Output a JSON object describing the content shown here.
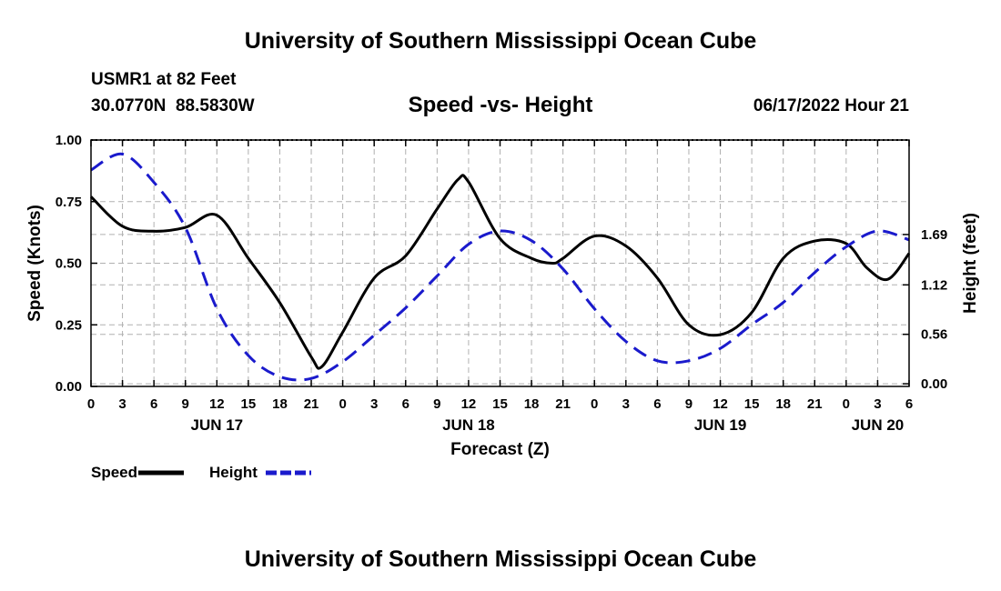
{
  "header": {
    "title": "University of Southern Mississippi Ocean Cube",
    "station": "USMR1 at 82 Feet",
    "coords": "30.0770N  88.5830W",
    "date": "06/17/2022 Hour 21",
    "footer_title": "University of Southern Mississippi Ocean Cube"
  },
  "colors": {
    "speed": "#000000",
    "height": "#1a1acc",
    "grid": "#b0b0b0"
  },
  "chart_data": {
    "type": "line",
    "title": "Speed -vs- Height",
    "xlabel": "Forecast (Z)",
    "ylabel": "Speed (Knots)",
    "y2label": "Height (feet)",
    "xlim": [
      0,
      78
    ],
    "ylim": [
      0,
      1
    ],
    "y2lim": [
      -0.03,
      2.76
    ],
    "x_tick_labels": [
      "0",
      "3",
      "6",
      "9",
      "12",
      "15",
      "18",
      "21",
      "0",
      "3",
      "6",
      "9",
      "12",
      "15",
      "18",
      "21",
      "0",
      "3",
      "6",
      "9",
      "12",
      "15",
      "18",
      "21",
      "0",
      "3",
      "6"
    ],
    "day_labels": [
      {
        "x": 12,
        "label": "JUN 17"
      },
      {
        "x": 36,
        "label": "JUN 18"
      },
      {
        "x": 60,
        "label": "JUN 19"
      },
      {
        "x": 75,
        "label": "JUN 20"
      }
    ],
    "y_ticks": [
      0,
      0.25,
      0.5,
      0.75,
      1.0
    ],
    "y_tick_labels": [
      "0.00",
      "0.25",
      "0.50",
      "0.75",
      "1.00"
    ],
    "y2_ticks": [
      0,
      0.56,
      1.12,
      1.69
    ],
    "y2_tick_labels": [
      "0.00",
      "0.56",
      "1.12",
      "1.69"
    ],
    "series": [
      {
        "name": "Speed",
        "axis": "left",
        "style": "solid",
        "x": [
          0,
          3,
          6,
          9,
          12,
          15,
          18,
          21,
          22,
          24,
          27,
          30,
          33,
          35,
          36,
          39,
          42,
          44,
          45,
          48,
          51,
          54,
          57,
          60,
          63,
          66,
          69,
          72,
          74,
          76,
          78
        ],
        "y": [
          0.77,
          0.65,
          0.63,
          0.645,
          0.695,
          0.52,
          0.34,
          0.12,
          0.08,
          0.22,
          0.44,
          0.53,
          0.72,
          0.84,
          0.83,
          0.6,
          0.52,
          0.5,
          0.52,
          0.61,
          0.57,
          0.44,
          0.25,
          0.21,
          0.3,
          0.52,
          0.59,
          0.58,
          0.48,
          0.435,
          0.54
        ]
      },
      {
        "name": "Height",
        "axis": "right",
        "style": "dashed",
        "x": [
          0,
          3,
          6,
          9,
          12,
          15,
          18,
          21,
          24,
          27,
          30,
          33,
          36,
          39,
          42,
          45,
          48,
          51,
          54,
          57,
          60,
          63,
          66,
          69,
          72,
          75,
          78
        ],
        "y": [
          2.42,
          2.6,
          2.28,
          1.77,
          0.85,
          0.32,
          0.08,
          0.06,
          0.25,
          0.55,
          0.86,
          1.22,
          1.58,
          1.73,
          1.62,
          1.3,
          0.85,
          0.48,
          0.26,
          0.26,
          0.4,
          0.67,
          0.92,
          1.26,
          1.55,
          1.73,
          1.63
        ]
      }
    ],
    "legend": [
      {
        "label": "Speed",
        "style": "solid"
      },
      {
        "label": "Height",
        "style": "dashed"
      }
    ],
    "legend_position": "bottom-left",
    "grid": true
  }
}
